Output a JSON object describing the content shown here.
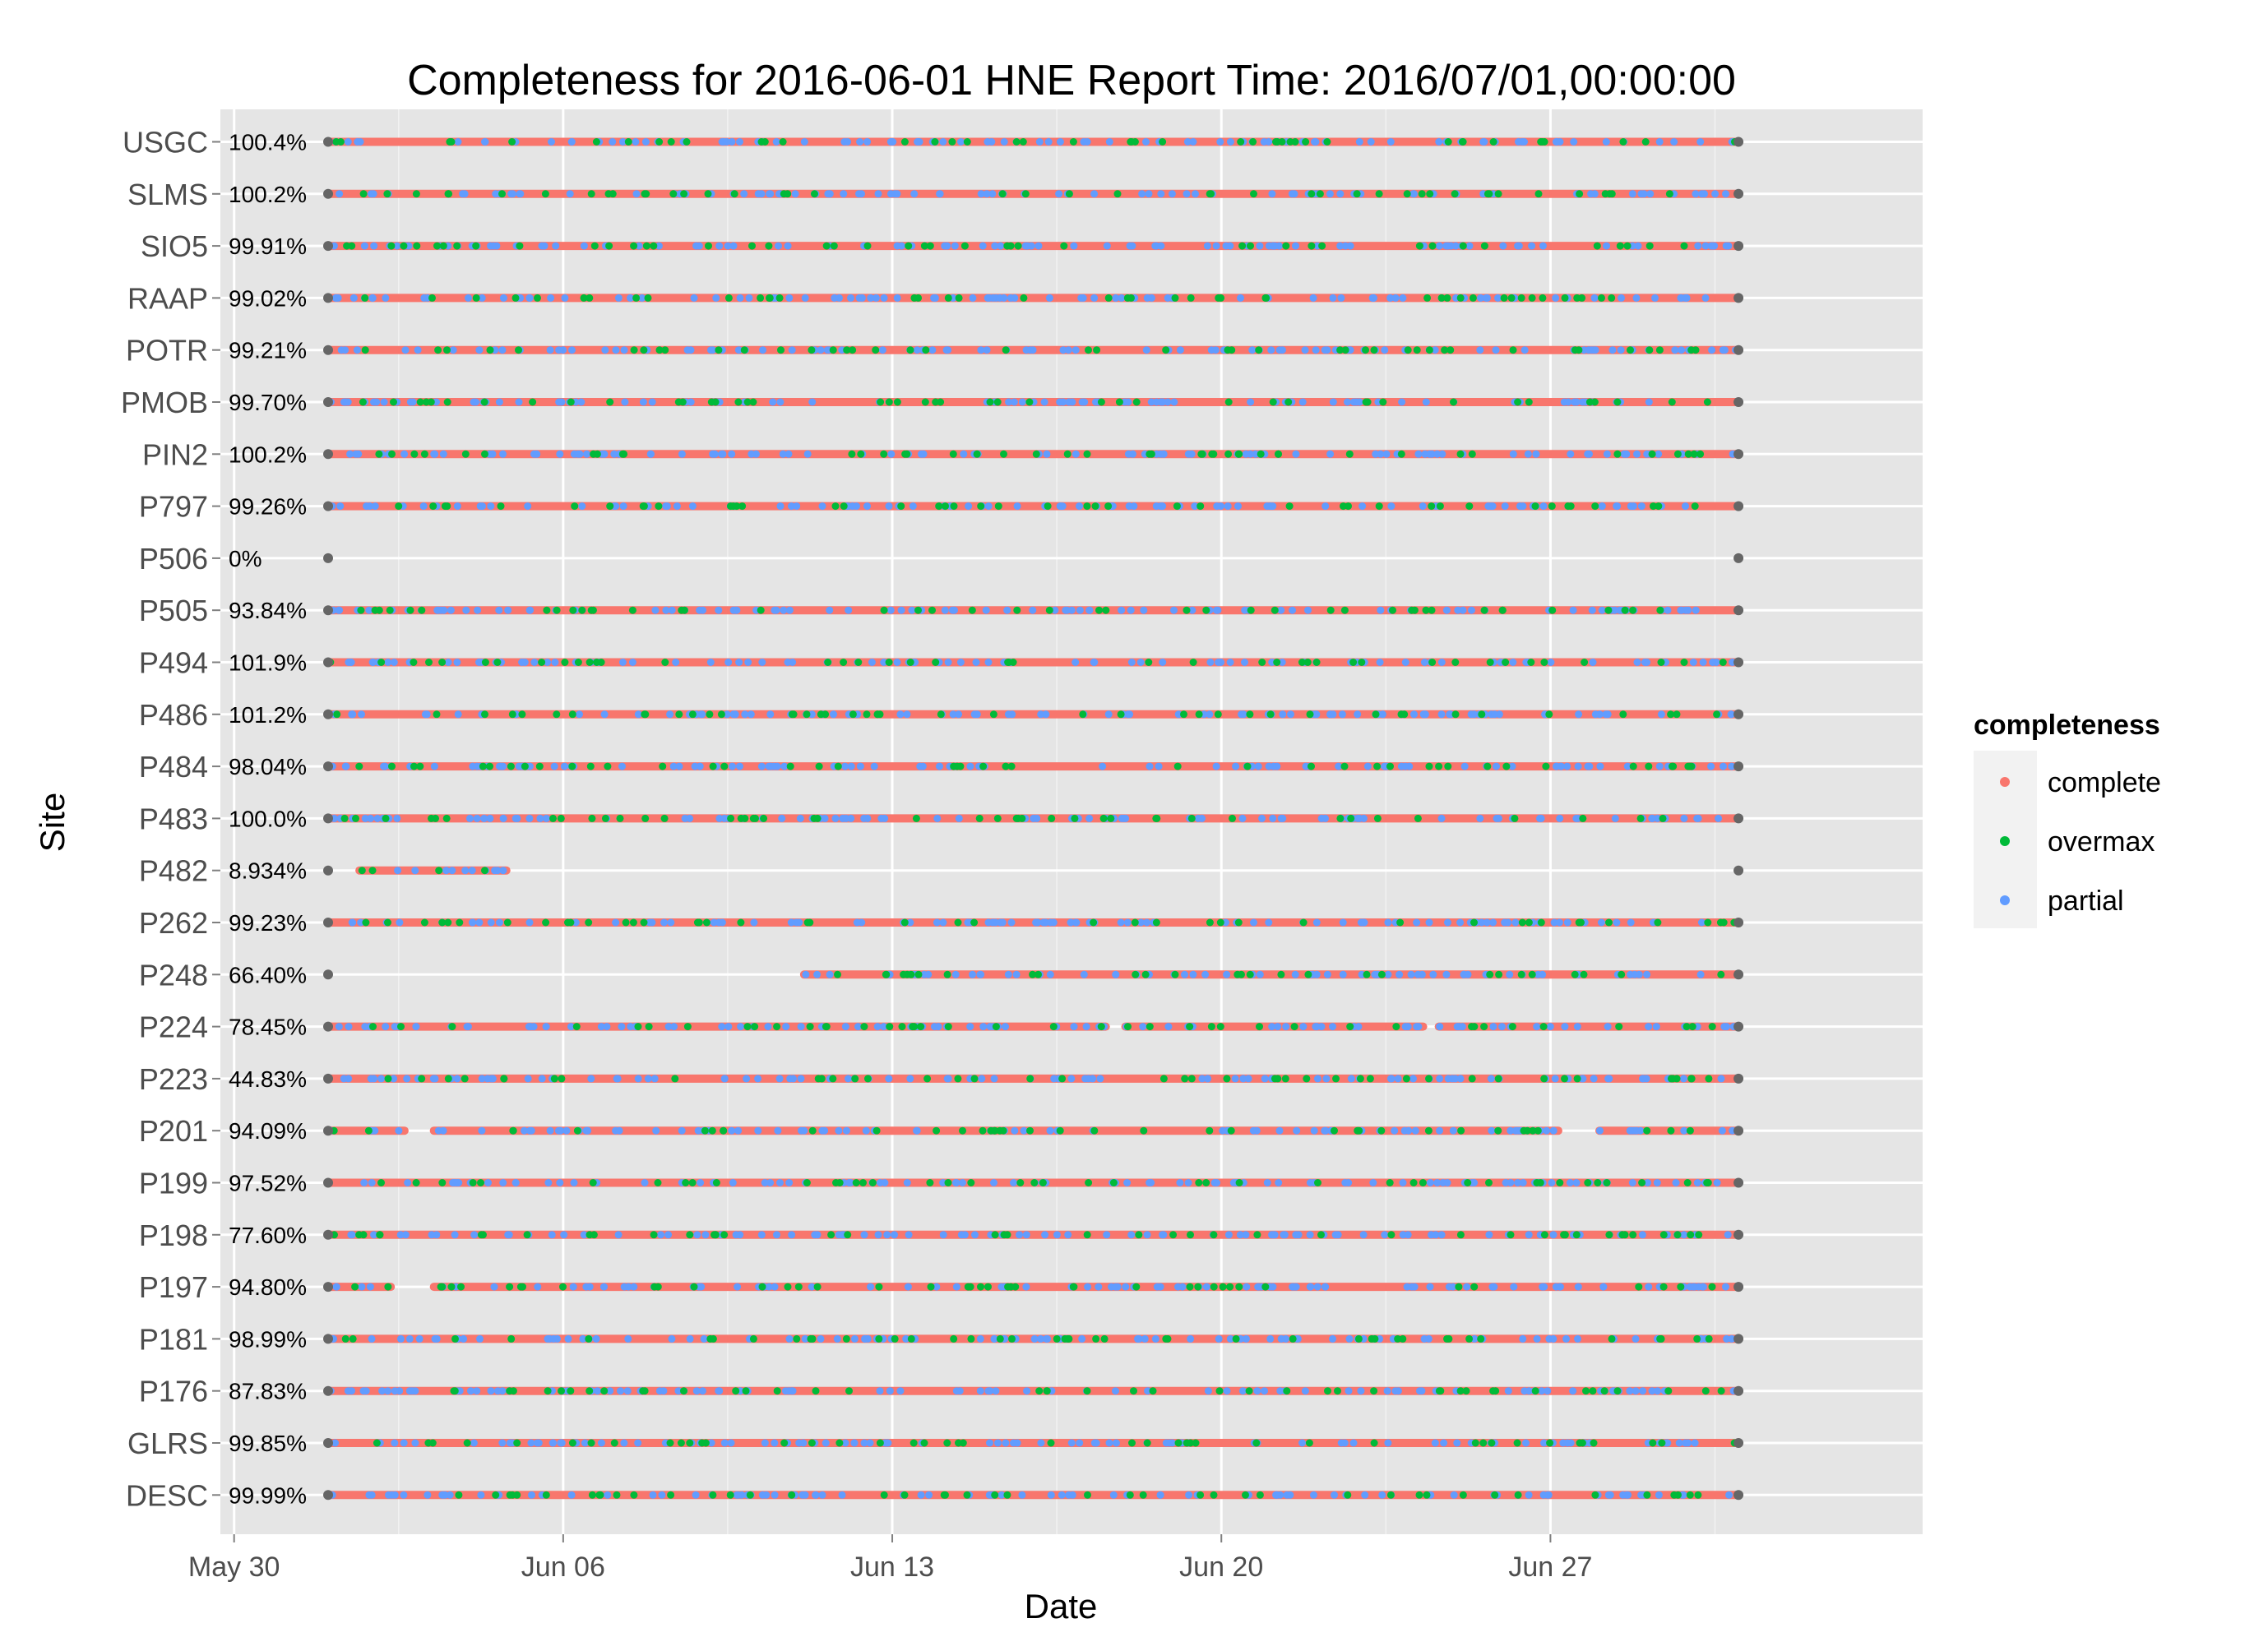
{
  "chart_data": {
    "type": "scatter",
    "title": "Completeness for  2016-06-01 HNE  Report Time:  2016/07/01,00:00:00",
    "xlabel": "Date",
    "ylabel": "Site",
    "x_ticks": [
      "May 30",
      "Jun 06",
      "Jun 13",
      "Jun 20",
      "Jun 27"
    ],
    "xlim": [
      "2016-05-29T17:00",
      "2016-07-04T22:00"
    ],
    "categories": [
      "USGC",
      "SLMS",
      "SIO5",
      "RAAP",
      "POTR",
      "PMOB",
      "PIN2",
      "P797",
      "P506",
      "P505",
      "P494",
      "P486",
      "P484",
      "P483",
      "P482",
      "P262",
      "P248",
      "P224",
      "P223",
      "P201",
      "P199",
      "P198",
      "P197",
      "P181",
      "P176",
      "GLRS",
      "DESC"
    ],
    "completeness_pct": [
      "100.4%",
      "100.2%",
      "99.91%",
      "99.02%",
      "99.21%",
      "99.70%",
      "100.2%",
      "99.26%",
      "0%",
      "93.84%",
      "101.9%",
      "101.2%",
      "98.04%",
      "100.0%",
      "8.934%",
      "99.23%",
      "66.40%",
      "78.45%",
      "44.83%",
      "94.09%",
      "97.52%",
      "77.60%",
      "94.80%",
      "98.99%",
      "87.83%",
      "99.85%",
      "99.99%"
    ],
    "data_range": {
      "start": "2016-06-01T00:00",
      "end": "2016-07-01T00:00"
    },
    "coverage": {
      "USGC": [
        [
          "2016-06-01T00:00",
          "2016-07-01T00:00"
        ]
      ],
      "SLMS": [
        [
          "2016-06-01T00:00",
          "2016-07-01T00:00"
        ]
      ],
      "SIO5": [
        [
          "2016-06-01T00:00",
          "2016-07-01T00:00"
        ]
      ],
      "RAAP": [
        [
          "2016-06-01T00:00",
          "2016-07-01T00:00"
        ]
      ],
      "POTR": [
        [
          "2016-06-01T00:00",
          "2016-07-01T00:00"
        ]
      ],
      "PMOB": [
        [
          "2016-06-01T00:00",
          "2016-07-01T00:00"
        ]
      ],
      "PIN2": [
        [
          "2016-06-01T00:00",
          "2016-07-01T00:00"
        ]
      ],
      "P797": [
        [
          "2016-06-01T00:00",
          "2016-07-01T00:00"
        ]
      ],
      "P506": [],
      "P505": [
        [
          "2016-06-01T00:00",
          "2016-07-01T00:00"
        ]
      ],
      "P494": [
        [
          "2016-06-01T00:00",
          "2016-07-01T00:00"
        ]
      ],
      "P486": [
        [
          "2016-06-01T00:00",
          "2016-07-01T00:00"
        ]
      ],
      "P484": [
        [
          "2016-06-01T00:00",
          "2016-07-01T00:00"
        ]
      ],
      "P483": [
        [
          "2016-06-01T00:00",
          "2016-07-01T00:00"
        ]
      ],
      "P482": [
        [
          "2016-06-01T16:00",
          "2016-06-04T19:00"
        ]
      ],
      "P262": [
        [
          "2016-06-01T00:00",
          "2016-07-01T00:00"
        ]
      ],
      "P248": [
        [
          "2016-06-11T03:00",
          "2016-07-01T00:00"
        ]
      ],
      "P224": [
        [
          "2016-06-01T00:00",
          "2016-06-17T13:00"
        ],
        [
          "2016-06-17T23:00",
          "2016-06-24T07:00"
        ],
        [
          "2016-06-24T15:00",
          "2016-07-01T00:00"
        ]
      ],
      "P223": [
        [
          "2016-06-01T00:00",
          "2016-07-01T00:00"
        ]
      ],
      "P201": [
        [
          "2016-06-01T00:00",
          "2016-06-02T15:00"
        ],
        [
          "2016-06-03T06:00",
          "2016-06-27T04:00"
        ],
        [
          "2016-06-28T01:00",
          "2016-07-01T00:00"
        ]
      ],
      "P199": [
        [
          "2016-06-01T00:00",
          "2016-07-01T00:00"
        ]
      ],
      "P198": [
        [
          "2016-06-01T00:00",
          "2016-07-01T00:00"
        ]
      ],
      "P197": [
        [
          "2016-06-01T00:00",
          "2016-06-02T08:00"
        ],
        [
          "2016-06-03T06:00",
          "2016-07-01T00:00"
        ]
      ],
      "P181": [
        [
          "2016-06-01T00:00",
          "2016-07-01T00:00"
        ]
      ],
      "P176": [
        [
          "2016-06-01T00:00",
          "2016-07-01T00:00"
        ]
      ],
      "GLRS": [
        [
          "2016-06-01T00:00",
          "2016-07-01T00:00"
        ]
      ],
      "DESC": [
        [
          "2016-06-01T00:00",
          "2016-07-01T00:00"
        ]
      ]
    },
    "legend": {
      "title": "completeness",
      "position": "right",
      "entries": [
        {
          "label": "complete",
          "color": "#F8766D"
        },
        {
          "label": "overmax",
          "color": "#00BA38"
        },
        {
          "label": "partial",
          "color": "#619CFF"
        }
      ]
    },
    "endpoint_color": "#666666",
    "panel_background": "#E5E5E5",
    "grid": true
  }
}
